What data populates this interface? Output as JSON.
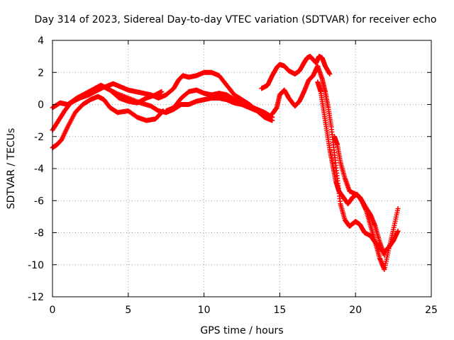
{
  "chart_data": {
    "type": "scatter",
    "title": "Day 314 of 2023, Sidereal Day-to-day VTEC variation (SDTVAR) for receiver echo",
    "xlabel": "GPS time / hours",
    "ylabel": "SDTVAR / TECUs",
    "xlim": [
      0,
      25
    ],
    "ylim": [
      -12,
      4
    ],
    "xticks": [
      "0",
      "5",
      "10",
      "15",
      "20",
      "25"
    ],
    "yticks": [
      "4",
      "2",
      "0",
      "-2",
      "-4",
      "-6",
      "-8",
      "-10",
      "-12"
    ],
    "grid": true,
    "marker": "+",
    "color": "#ff0000",
    "series": [
      {
        "name": "trace-a",
        "x": [
          0.0,
          0.3,
          0.6,
          1.0,
          1.5,
          2.0,
          2.5,
          3.0,
          3.4,
          3.8,
          4.3,
          5.0,
          5.6,
          6.2,
          6.8,
          7.3
        ],
        "y": [
          -2.7,
          -2.5,
          -2.2,
          -1.4,
          -0.5,
          0.0,
          0.3,
          0.5,
          0.3,
          -0.2,
          -0.5,
          -0.4,
          -0.8,
          -1.0,
          -0.9,
          -0.4
        ]
      },
      {
        "name": "trace-b",
        "x": [
          0.0,
          0.4,
          0.8,
          1.2,
          1.8,
          2.4,
          3.0,
          3.4,
          3.8,
          4.4,
          5.0,
          5.6,
          6.2,
          6.8,
          7.2
        ],
        "y": [
          -1.6,
          -1.0,
          -0.4,
          0.1,
          0.4,
          0.6,
          0.9,
          1.1,
          0.9,
          0.4,
          0.2,
          0.1,
          0.4,
          0.6,
          0.8
        ]
      },
      {
        "name": "trace-c",
        "x": [
          0.0,
          0.5,
          1.0,
          1.6,
          2.2,
          2.8,
          3.2,
          3.6,
          4.2,
          5.0,
          5.8,
          6.5,
          7.0,
          7.5,
          8.0,
          8.5,
          9.0,
          9.5,
          10.0,
          10.5,
          11.0,
          11.5,
          12.0,
          12.5,
          13.0,
          13.5,
          14.0,
          14.5
        ],
        "y": [
          -0.2,
          0.1,
          0.0,
          0.4,
          0.7,
          1.0,
          1.2,
          1.0,
          0.7,
          0.4,
          0.1,
          -0.1,
          -0.4,
          -0.5,
          -0.3,
          0.0,
          0.0,
          0.2,
          0.3,
          0.4,
          0.4,
          0.3,
          0.1,
          0.0,
          -0.2,
          -0.4,
          -0.6,
          -0.8
        ]
      },
      {
        "name": "trace-d",
        "x": [
          3.5,
          4.0,
          4.5,
          5.0,
          5.5,
          6.0,
          6.5,
          7.0,
          7.5,
          8.0,
          8.3,
          8.6,
          9.0,
          9.5,
          10.0,
          10.5,
          11.0,
          11.5,
          12.0,
          12.5,
          13.0,
          13.5,
          14.0,
          14.5
        ],
        "y": [
          1.1,
          1.3,
          1.1,
          0.9,
          0.8,
          0.7,
          0.6,
          0.4,
          0.6,
          1.0,
          1.5,
          1.8,
          1.7,
          1.8,
          2.0,
          2.0,
          1.8,
          1.2,
          0.6,
          0.3,
          0.0,
          -0.4,
          -0.8,
          -1.0
        ]
      },
      {
        "name": "trace-e",
        "x": [
          7.5,
          8.0,
          8.5,
          9.0,
          9.5,
          10.0,
          10.5,
          11.0,
          11.5,
          12.0,
          12.5,
          13.0,
          13.5,
          14.0,
          14.5
        ],
        "y": [
          -0.4,
          -0.2,
          0.4,
          0.8,
          0.9,
          0.7,
          0.6,
          0.7,
          0.6,
          0.3,
          0.1,
          -0.1,
          -0.3,
          -0.5,
          -0.8
        ]
      },
      {
        "name": "trace-f",
        "x": [
          13.8,
          14.2,
          14.5,
          14.8,
          15.0,
          15.3,
          15.6,
          16.0,
          16.3,
          16.6,
          16.8,
          17.0,
          17.2,
          17.4,
          17.6,
          17.8,
          18.0,
          18.3
        ],
        "y": [
          1.0,
          1.2,
          1.8,
          2.3,
          2.5,
          2.4,
          2.1,
          1.9,
          2.1,
          2.6,
          2.9,
          3.0,
          2.8,
          2.6,
          3.0,
          2.9,
          2.4,
          1.9
        ]
      },
      {
        "name": "trace-g",
        "x": [
          14.5,
          14.8,
          15.0,
          15.3,
          15.6,
          16.0,
          16.3,
          16.6,
          16.9,
          17.2,
          17.5,
          17.8,
          18.0,
          18.2,
          18.4,
          18.6,
          18.8,
          19.0,
          19.3,
          19.6,
          20.0,
          20.3,
          20.6,
          21.0,
          21.3,
          21.6,
          21.9,
          22.2,
          22.5,
          22.8
        ],
        "y": [
          -0.6,
          -0.2,
          0.6,
          0.9,
          0.4,
          -0.1,
          0.2,
          0.8,
          1.5,
          1.8,
          2.4,
          1.6,
          0.8,
          -0.2,
          -1.4,
          -3.0,
          -4.6,
          -6.2,
          -7.2,
          -7.6,
          -7.3,
          -7.5,
          -8.0,
          -8.2,
          -8.6,
          -9.0,
          -9.2,
          -8.9,
          -8.5,
          -7.9
        ]
      },
      {
        "name": "trace-h",
        "x": [
          17.5,
          17.7,
          17.9,
          18.1,
          18.3,
          18.5,
          18.7,
          18.9,
          19.2,
          19.5,
          19.8,
          20.1,
          20.4,
          20.7,
          21.0,
          21.3,
          21.6,
          21.9,
          22.2,
          22.5,
          22.8
        ],
        "y": [
          1.4,
          0.8,
          -0.4,
          -1.6,
          -2.8,
          -3.8,
          -4.8,
          -5.4,
          -5.8,
          -6.2,
          -5.8,
          -5.6,
          -6.0,
          -6.6,
          -7.6,
          -8.6,
          -9.6,
          -10.3,
          -9.0,
          -7.8,
          -6.5
        ]
      },
      {
        "name": "trace-i",
        "x": [
          18.6,
          18.8,
          19.0,
          19.3,
          19.6,
          20.0,
          20.3,
          20.6,
          21.0,
          21.3,
          21.6,
          21.9
        ],
        "y": [
          -2.0,
          -2.5,
          -3.6,
          -4.6,
          -5.4,
          -5.6,
          -5.8,
          -6.3,
          -6.9,
          -7.6,
          -8.6,
          -9.4
        ]
      }
    ]
  }
}
